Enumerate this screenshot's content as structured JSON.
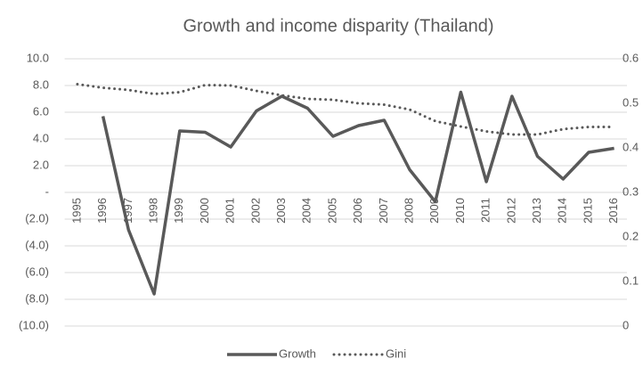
{
  "chart_data": {
    "type": "line",
    "title": "Growth and income disparity (Thailand)",
    "categories": [
      "1995",
      "1996",
      "1997",
      "1998",
      "1999",
      "2000",
      "2001",
      "2002",
      "2003",
      "2004",
      "2005",
      "2006",
      "2007",
      "2008",
      "2009",
      "2010",
      "2011",
      "2012",
      "2013",
      "2014",
      "2015",
      "2016"
    ],
    "series": [
      {
        "name": "Growth",
        "color": "#595959",
        "style": "solid",
        "axis": "y",
        "values": [
          null,
          5.7,
          -2.8,
          -7.6,
          4.6,
          4.5,
          3.4,
          6.1,
          7.2,
          6.3,
          4.2,
          5.0,
          5.4,
          1.7,
          -0.7,
          7.5,
          0.8,
          7.2,
          2.7,
          1.0,
          3.0,
          3.3
        ]
      },
      {
        "name": "Gini",
        "color": "#595959",
        "style": "dotted",
        "axis": "y2",
        "values": [
          0.543,
          0.535,
          0.53,
          0.521,
          0.525,
          0.541,
          0.54,
          0.528,
          0.518,
          0.51,
          0.508,
          0.5,
          0.497,
          0.486,
          0.46,
          0.448,
          0.437,
          0.43,
          0.43,
          0.442,
          0.447,
          0.447
        ]
      }
    ],
    "ylim": [
      -10,
      10
    ],
    "yticks": [
      {
        "value": -10,
        "label": "(10.0)"
      },
      {
        "value": -8,
        "label": "(8.0)"
      },
      {
        "value": -6,
        "label": "(6.0)"
      },
      {
        "value": -4,
        "label": "(4.0)"
      },
      {
        "value": -2,
        "label": "(2.0)"
      },
      {
        "value": 0,
        "label": "-"
      },
      {
        "value": 2,
        "label": "2.0"
      },
      {
        "value": 4,
        "label": "4.0"
      },
      {
        "value": 6,
        "label": "6.0"
      },
      {
        "value": 8,
        "label": "8.0"
      },
      {
        "value": 10,
        "label": "10.0"
      }
    ],
    "y2lim": [
      0,
      0.6
    ],
    "y2ticks": [
      0,
      0.1,
      0.2,
      0.3,
      0.4,
      0.5,
      0.6
    ],
    "grid": true,
    "legend": "bottom"
  }
}
